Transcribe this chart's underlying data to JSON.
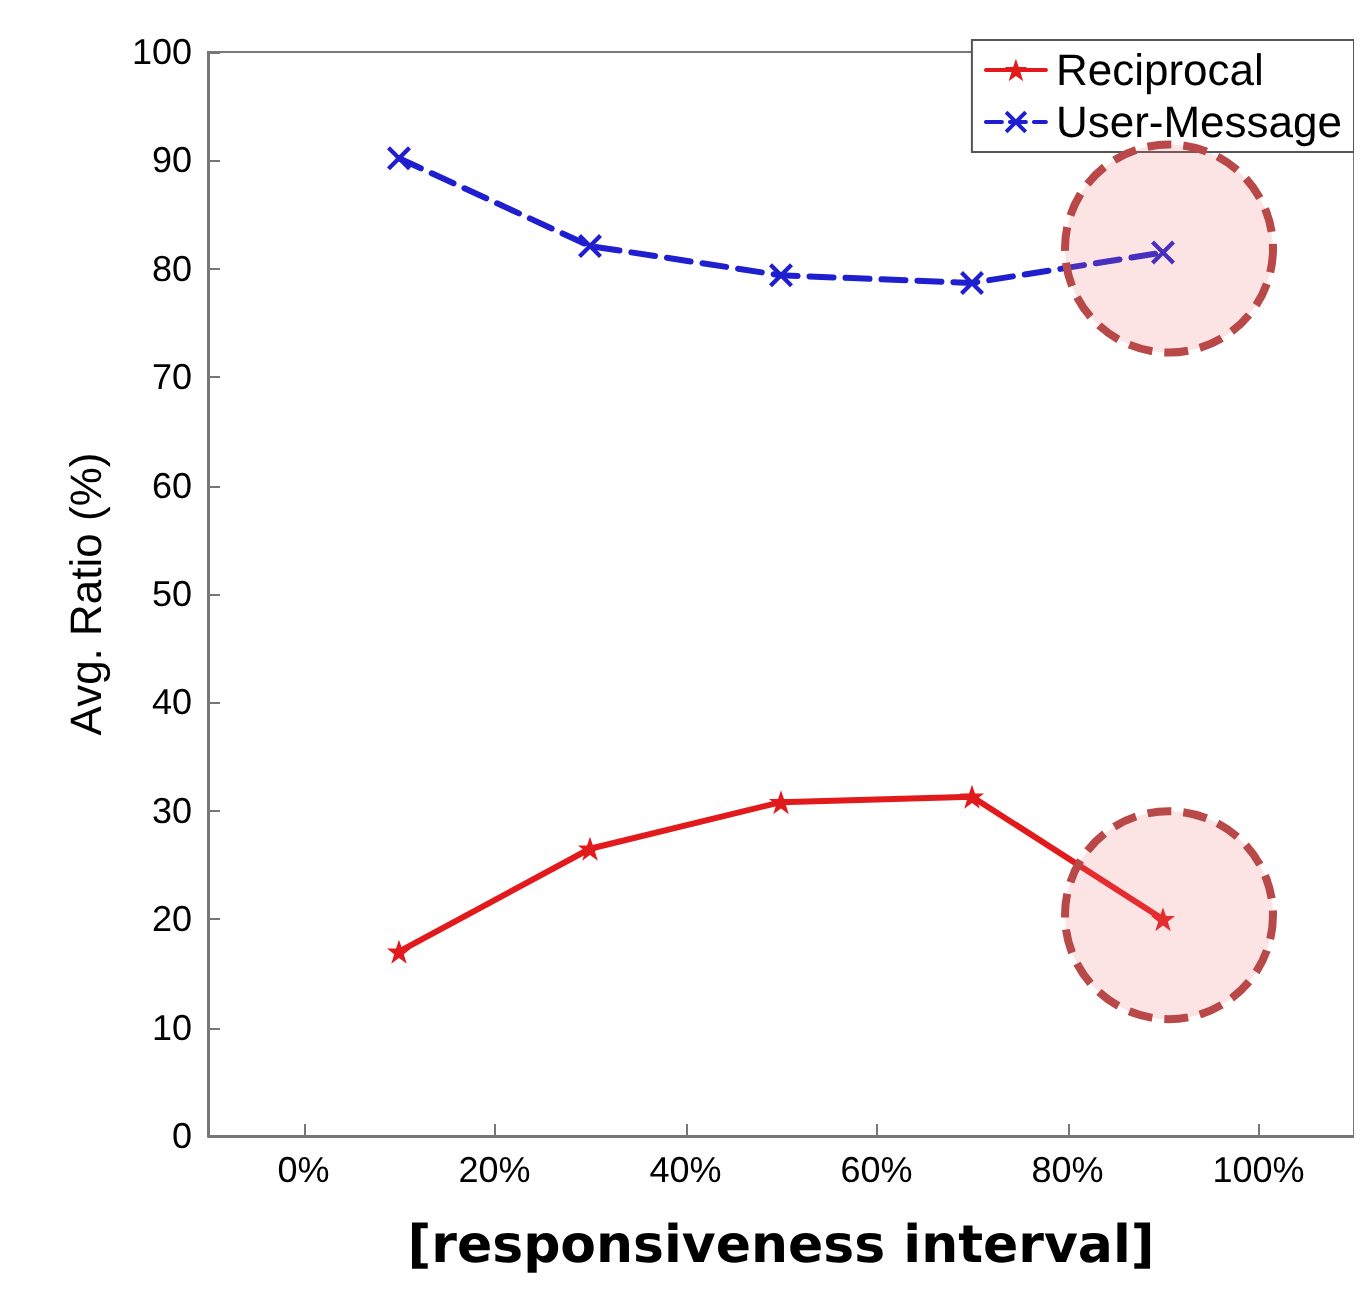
{
  "chart_data": {
    "type": "line",
    "xlabel": "[responsiveness interval]",
    "ylabel": "Avg. Ratio (%)",
    "x": [
      10,
      30,
      50,
      70,
      90
    ],
    "series": [
      {
        "name": "Reciprocal",
        "color": "#e31a1c",
        "marker": "star",
        "line_style": "solid",
        "values": [
          17,
          26.5,
          30.8,
          31.3,
          20
        ]
      },
      {
        "name": "User-Message",
        "color": "#1f1fd0",
        "marker": "cross",
        "line_style": "dashed",
        "values": [
          90.2,
          82.1,
          79.4,
          78.7,
          81.5
        ]
      }
    ],
    "xlim": [
      -10,
      110
    ],
    "xticks": [
      {
        "value": 0,
        "label": "0%"
      },
      {
        "value": 20,
        "label": "20%"
      },
      {
        "value": 40,
        "label": "40%"
      },
      {
        "value": 60,
        "label": "60%"
      },
      {
        "value": 80,
        "label": "80%"
      },
      {
        "value": 100,
        "label": "100%"
      }
    ],
    "ylim": [
      0,
      100
    ],
    "yticks": [
      0,
      10,
      20,
      30,
      40,
      50,
      60,
      70,
      80,
      90,
      100
    ],
    "grid": false,
    "legend": "top right"
  }
}
